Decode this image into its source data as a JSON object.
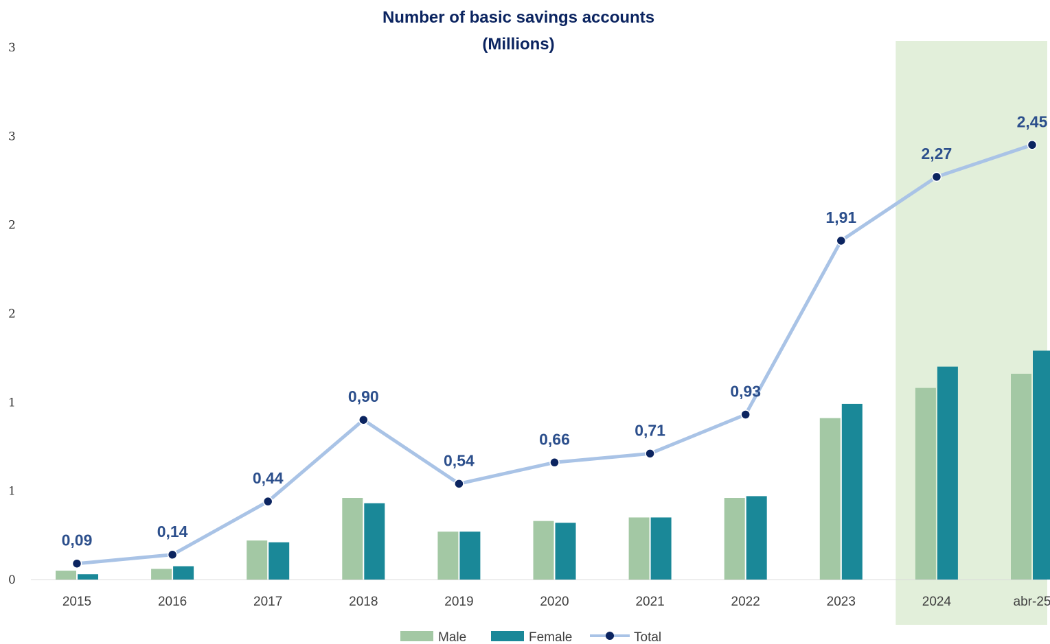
{
  "chart_data": {
    "type": "bar",
    "title": "Number of basic savings accounts",
    "subtitle": "(Millions)",
    "categories": [
      "2015",
      "2016",
      "2017",
      "2018",
      "2019",
      "2020",
      "2021",
      "2022",
      "2023",
      "2024",
      "abr-25"
    ],
    "y_tick_labels": [
      "0",
      "1",
      "1",
      "2",
      "2",
      "3",
      "3"
    ],
    "ylim": [
      0,
      3
    ],
    "series": [
      {
        "name": "Male",
        "kind": "bar",
        "color": "#a3c8a4",
        "values": [
          0.05,
          0.06,
          0.22,
          0.46,
          0.27,
          0.33,
          0.35,
          0.46,
          0.91,
          1.08,
          1.16
        ]
      },
      {
        "name": "Female",
        "kind": "bar",
        "color": "#1a8898",
        "values": [
          0.03,
          0.075,
          0.21,
          0.43,
          0.27,
          0.32,
          0.35,
          0.47,
          0.99,
          1.2,
          1.29
        ]
      },
      {
        "name": "Total",
        "kind": "line",
        "color": "#a9c3e6",
        "marker_color": "#0b2460",
        "values": [
          0.09,
          0.14,
          0.44,
          0.9,
          0.54,
          0.66,
          0.71,
          0.93,
          1.91,
          2.27,
          2.45
        ],
        "labels": [
          "0,09",
          "0,14",
          "0,44",
          "0,90",
          "0,54",
          "0,66",
          "0,71",
          "0,93",
          "1,91",
          "2,27",
          "2,45"
        ]
      }
    ],
    "highlight": {
      "categories": [
        "2024",
        "abr-25"
      ],
      "color": "#e2efda"
    },
    "legend_position": "bottom",
    "grid": false
  }
}
